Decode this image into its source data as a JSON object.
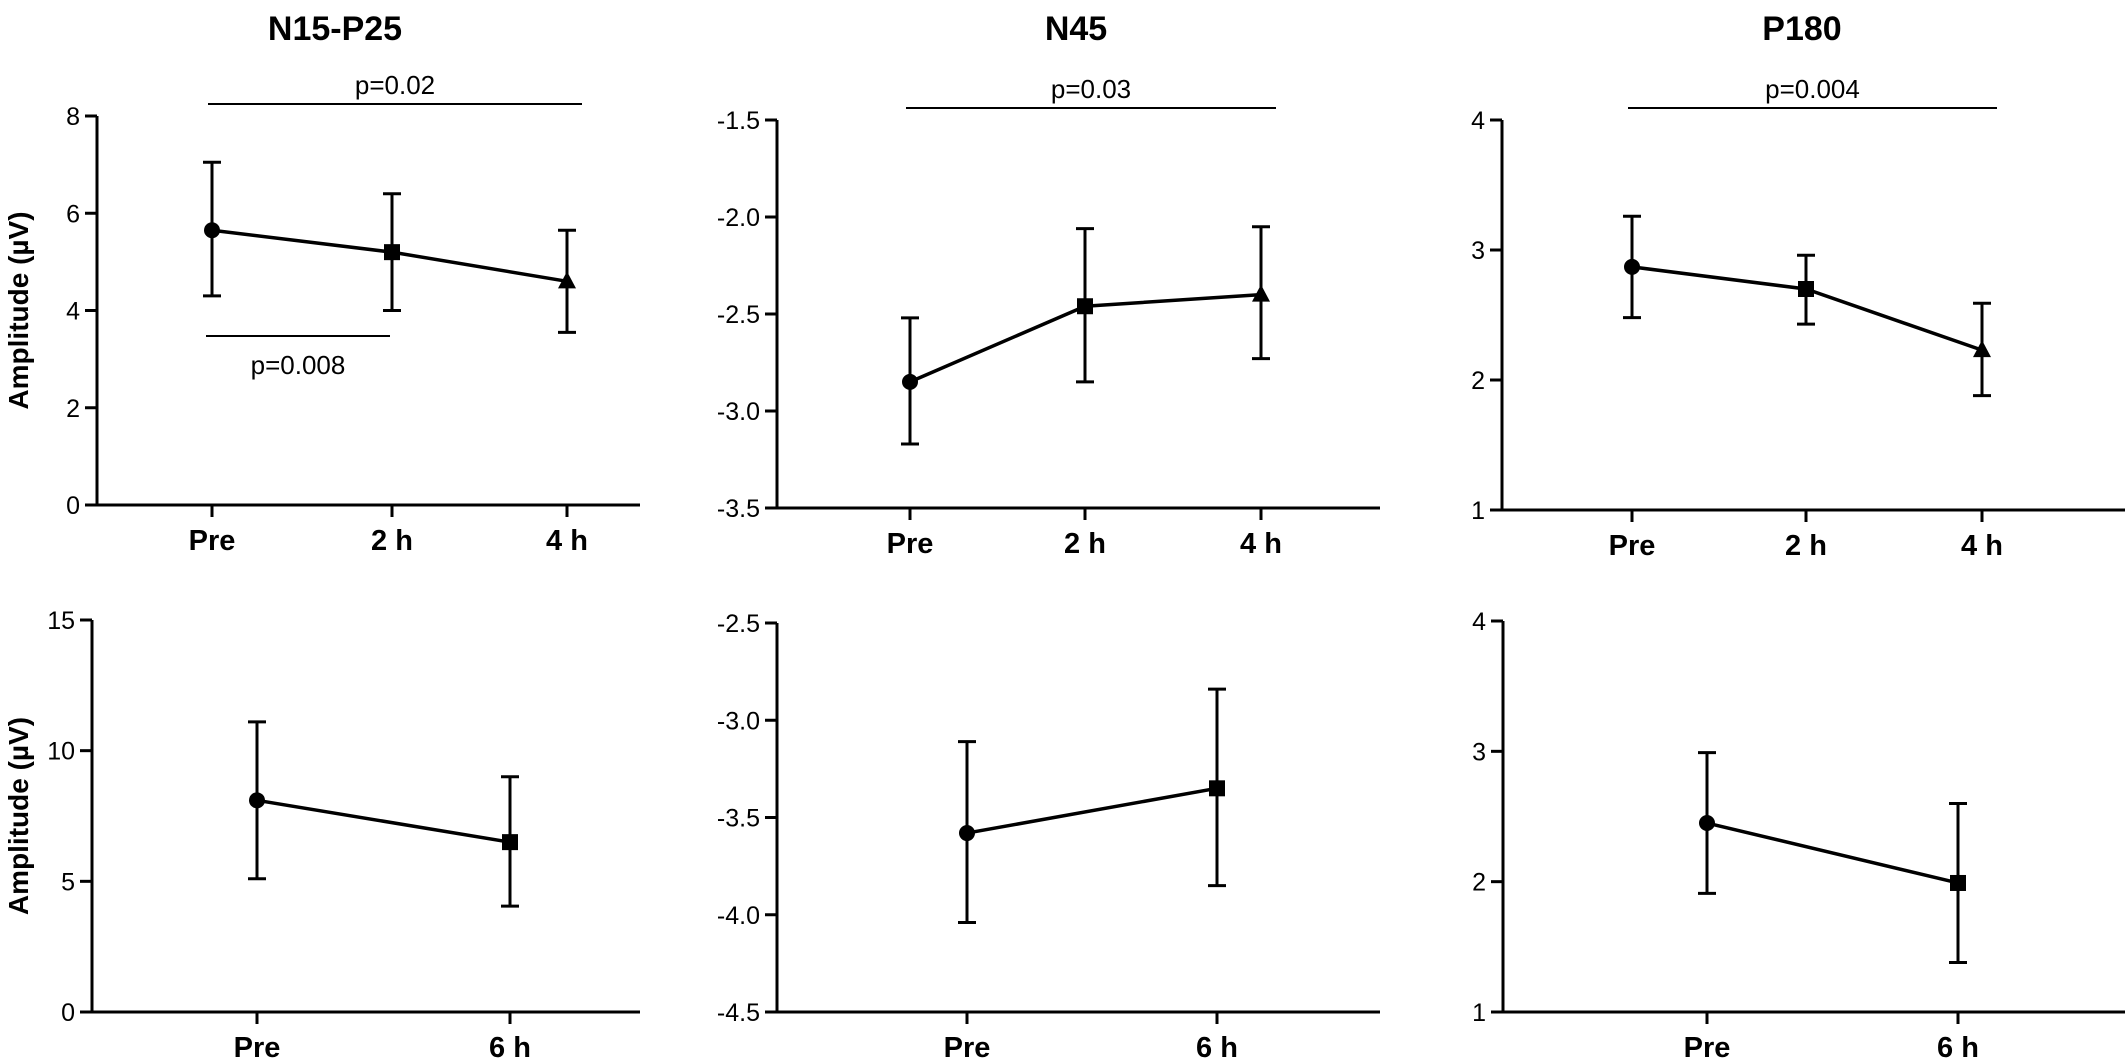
{
  "chart_data": [
    {
      "type": "line",
      "title": "N15-P25",
      "ylabel": "Amplitude (µV)",
      "categories": [
        "Pre",
        "2 h",
        "4 h"
      ],
      "ylim": [
        0,
        8
      ],
      "yticks": [
        "0",
        "2",
        "4",
        "6",
        "8"
      ],
      "markers": [
        "circle",
        "square",
        "triangle"
      ],
      "series": [
        {
          "values": [
            5.65,
            5.2,
            4.6
          ],
          "err_low": [
            4.3,
            4.0,
            3.55
          ],
          "err_high": [
            7.05,
            6.4,
            5.65
          ]
        }
      ],
      "annotations": [
        {
          "text": "p=0.02",
          "from": 0,
          "to": 2,
          "position": "above"
        },
        {
          "text": "p=0.008",
          "from": 0,
          "to": 1,
          "position": "below"
        }
      ]
    },
    {
      "type": "line",
      "title": "N45",
      "ylabel": "",
      "categories": [
        "Pre",
        "2 h",
        "4 h"
      ],
      "ylim": [
        -3.5,
        -1.5
      ],
      "yticks": [
        "-3.5",
        "-3.0",
        "-2.5",
        "-2.0",
        "-1.5"
      ],
      "markers": [
        "circle",
        "square",
        "triangle"
      ],
      "series": [
        {
          "values": [
            -2.85,
            -2.46,
            -2.4
          ],
          "err_low": [
            -3.17,
            -2.85,
            -2.73
          ],
          "err_high": [
            -2.52,
            -2.06,
            -2.05
          ]
        }
      ],
      "annotations": [
        {
          "text": "p=0.03",
          "from": 0,
          "to": 2,
          "position": "above"
        }
      ]
    },
    {
      "type": "line",
      "title": "P180",
      "ylabel": "",
      "categories": [
        "Pre",
        "2 h",
        "4 h"
      ],
      "ylim": [
        1,
        4
      ],
      "yticks": [
        "1",
        "2",
        "3",
        "4"
      ],
      "markers": [
        "circle",
        "square",
        "triangle"
      ],
      "series": [
        {
          "values": [
            2.87,
            2.7,
            2.23
          ],
          "err_low": [
            2.48,
            2.43,
            1.88
          ],
          "err_high": [
            3.26,
            2.96,
            2.59
          ]
        }
      ],
      "annotations": [
        {
          "text": "p=0.004",
          "from": 0,
          "to": 2,
          "position": "above"
        }
      ]
    },
    {
      "type": "line",
      "title": "",
      "ylabel": "Amplitude (µV)",
      "categories": [
        "Pre",
        "6 h"
      ],
      "ylim": [
        0,
        15
      ],
      "yticks": [
        "0",
        "5",
        "10",
        "15"
      ],
      "markers": [
        "circle",
        "square"
      ],
      "series": [
        {
          "values": [
            8.1,
            6.5
          ],
          "err_low": [
            5.1,
            4.05
          ],
          "err_high": [
            11.1,
            9.0
          ]
        }
      ],
      "annotations": []
    },
    {
      "type": "line",
      "title": "",
      "ylabel": "",
      "categories": [
        "Pre",
        "6 h"
      ],
      "ylim": [
        -4.5,
        -2.5
      ],
      "yticks": [
        "-4.5",
        "-4.0",
        "-3.5",
        "-3.0",
        "-2.5"
      ],
      "markers": [
        "circle",
        "square"
      ],
      "series": [
        {
          "values": [
            -3.58,
            -3.35
          ],
          "err_low": [
            -4.04,
            -3.85
          ],
          "err_high": [
            -3.11,
            -2.84
          ]
        }
      ],
      "annotations": []
    },
    {
      "type": "line",
      "title": "",
      "ylabel": "",
      "categories": [
        "Pre",
        "6 h"
      ],
      "ylim": [
        1,
        4
      ],
      "yticks": [
        "1",
        "2",
        "3",
        "4"
      ],
      "markers": [
        "circle",
        "square"
      ],
      "series": [
        {
          "values": [
            2.45,
            1.99
          ],
          "err_low": [
            1.91,
            1.38
          ],
          "err_high": [
            2.99,
            2.6
          ]
        }
      ],
      "annotations": []
    }
  ]
}
